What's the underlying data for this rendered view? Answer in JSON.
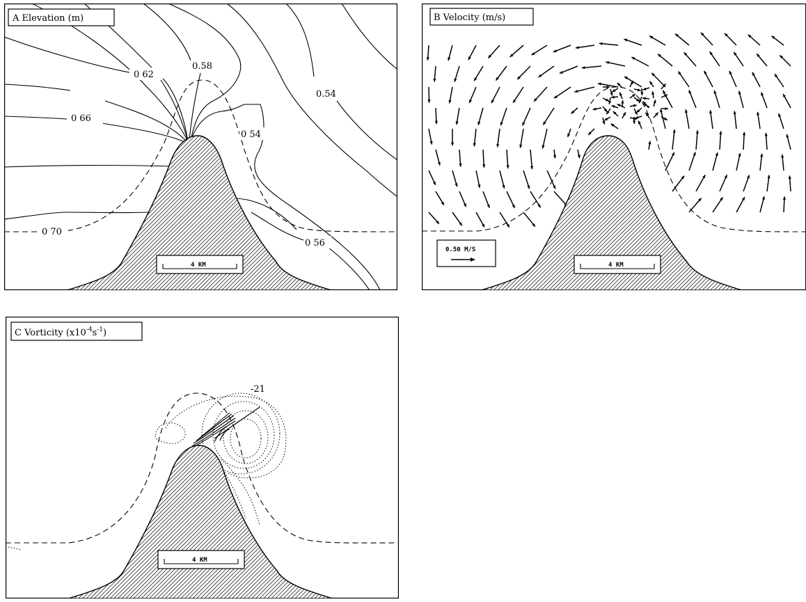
{
  "panels": {
    "a": {
      "title": "A Elevation (m)",
      "contour_labels": [
        "0 62",
        "0.58",
        "0.54",
        "0 66",
        "0 54",
        "0 70",
        "0 56"
      ],
      "scale_label": "4 KM"
    },
    "b": {
      "title": "B Velocity (m/s)",
      "reference_vector": "0.50 M/S",
      "scale_label": "4 KM"
    },
    "c": {
      "title_prefix": "C Vorticity (x10",
      "title_exp1": "-4",
      "title_mid": "s",
      "title_exp2": "-1",
      "title_suffix": ")",
      "annotation": "-21",
      "scale_label": "4 KM"
    }
  },
  "colors": {
    "ink": "#000000",
    "background": "#ffffff"
  }
}
